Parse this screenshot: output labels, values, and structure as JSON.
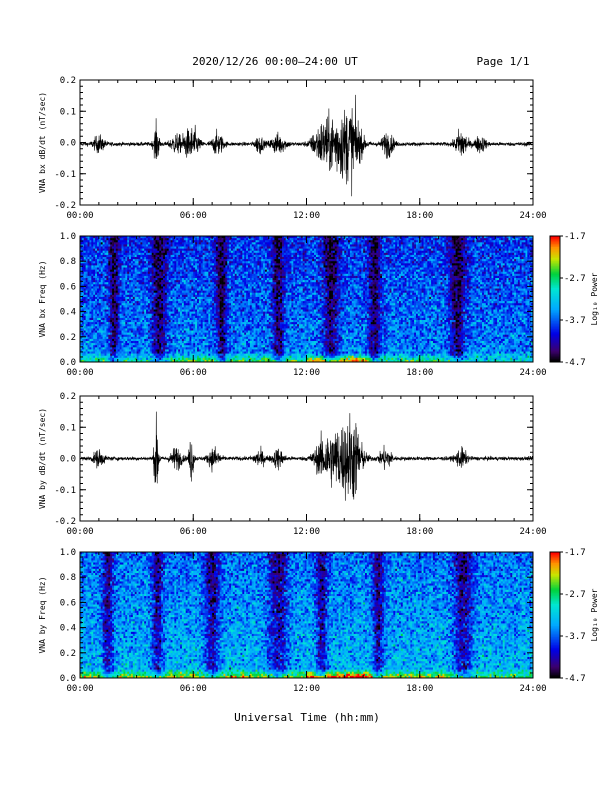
{
  "header": {
    "title": "2020/12/26  00:00–24:00 UT",
    "page": "Page 1/1"
  },
  "xlabel": "Universal Time (hh:mm)",
  "chart_data": [
    {
      "type": "line",
      "name": "bx-waveform",
      "ylabel": "VNA bx dB/dt (nT/sec)",
      "xlim": [
        0,
        24
      ],
      "ylim": [
        -0.2,
        0.2
      ],
      "x_ticks": [
        "00:00",
        "06:00",
        "12:00",
        "18:00",
        "24:00"
      ],
      "y_ticks": [
        "0.2",
        "0.1",
        "0.0",
        "-0.1",
        "-0.2"
      ],
      "baseline": -0.005,
      "noise": 0.006,
      "bursts": [
        {
          "t": 1.0,
          "amp": 0.025,
          "w": 0.3
        },
        {
          "t": 4.05,
          "amp": 0.06,
          "w": 0.15
        },
        {
          "t": 5.1,
          "amp": 0.03,
          "w": 0.3
        },
        {
          "t": 5.6,
          "amp": 0.03,
          "w": 0.2
        },
        {
          "t": 6.0,
          "amp": 0.05,
          "w": 0.3
        },
        {
          "t": 7.3,
          "amp": 0.035,
          "w": 0.3
        },
        {
          "t": 9.5,
          "amp": 0.03,
          "w": 0.2
        },
        {
          "t": 10.5,
          "amp": 0.03,
          "w": 0.4
        },
        {
          "t": 12.8,
          "amp": 0.05,
          "w": 0.5
        },
        {
          "t": 13.8,
          "amp": 0.1,
          "w": 0.8
        },
        {
          "t": 14.5,
          "amp": 0.07,
          "w": 0.4
        },
        {
          "t": 16.3,
          "amp": 0.04,
          "w": 0.3
        },
        {
          "t": 20.2,
          "amp": 0.05,
          "w": 0.3
        },
        {
          "t": 21.2,
          "amp": 0.025,
          "w": 0.3
        }
      ]
    },
    {
      "type": "heatmap",
      "name": "bx-spectrogram",
      "ylabel": "VNA bx Freq (Hz)",
      "xlim": [
        0,
        24
      ],
      "ylim": [
        0,
        1.0
      ],
      "x_ticks": [
        "00:00",
        "06:00",
        "12:00",
        "18:00",
        "24:00"
      ],
      "y_ticks": [
        "1.0",
        "0.8",
        "0.6",
        "0.4",
        "0.2",
        "0.0"
      ],
      "colorbar": {
        "label": "Log₁₀ Power",
        "range": [
          -4.7,
          -1.7
        ],
        "ticks": [
          "-1.7",
          "-2.7",
          "-3.7",
          "-4.7"
        ]
      },
      "quiet_bands": [
        [
          1.8,
          0.25
        ],
        [
          4.2,
          0.4
        ],
        [
          7.5,
          0.3
        ],
        [
          10.5,
          0.3
        ],
        [
          13.3,
          0.4
        ],
        [
          15.6,
          0.3
        ],
        [
          20.0,
          0.4
        ]
      ],
      "base_level": -3.55,
      "low_freq_boost": [
        [
          0.0,
          4.0,
          0.6
        ],
        [
          4.0,
          12.0,
          0.9
        ],
        [
          12.0,
          15.5,
          1.6
        ],
        [
          15.5,
          20.5,
          0.8
        ],
        [
          20.5,
          24.0,
          0.3
        ]
      ]
    },
    {
      "type": "line",
      "name": "by-waveform",
      "ylabel": "VNA by dB/dt (nT/sec)",
      "xlim": [
        0,
        24
      ],
      "ylim": [
        -0.2,
        0.2
      ],
      "x_ticks": [
        "00:00",
        "06:00",
        "12:00",
        "18:00",
        "24:00"
      ],
      "y_ticks": [
        "0.2",
        "0.1",
        "0.0",
        "-0.1",
        "-0.2"
      ],
      "baseline": 0.0,
      "noise": 0.006,
      "bursts": [
        {
          "t": 1.0,
          "amp": 0.025,
          "w": 0.3
        },
        {
          "t": 4.05,
          "amp": 0.12,
          "w": 0.12
        },
        {
          "t": 5.1,
          "amp": 0.035,
          "w": 0.3
        },
        {
          "t": 5.9,
          "amp": 0.08,
          "w": 0.12
        },
        {
          "t": 7.1,
          "amp": 0.035,
          "w": 0.3
        },
        {
          "t": 9.5,
          "amp": 0.025,
          "w": 0.3
        },
        {
          "t": 10.5,
          "amp": 0.03,
          "w": 0.3
        },
        {
          "t": 12.9,
          "amp": 0.05,
          "w": 0.5
        },
        {
          "t": 13.9,
          "amp": 0.1,
          "w": 0.8
        },
        {
          "t": 14.5,
          "amp": 0.08,
          "w": 0.4
        },
        {
          "t": 16.2,
          "amp": 0.035,
          "w": 0.3
        },
        {
          "t": 20.2,
          "amp": 0.03,
          "w": 0.3
        }
      ]
    },
    {
      "type": "heatmap",
      "name": "by-spectrogram",
      "ylabel": "VNA by Freq (Hz)",
      "xlim": [
        0,
        24
      ],
      "ylim": [
        0,
        1.0
      ],
      "x_ticks": [
        "00:00",
        "06:00",
        "12:00",
        "18:00",
        "24:00"
      ],
      "y_ticks": [
        "1.0",
        "0.8",
        "0.6",
        "0.4",
        "0.2",
        "0.0"
      ],
      "colorbar": {
        "label": "Log₁₀ Power",
        "range": [
          -4.7,
          -1.7
        ],
        "ticks": [
          "-1.7",
          "-2.7",
          "-3.7",
          "-4.7"
        ]
      },
      "quiet_bands": [
        [
          1.5,
          0.3
        ],
        [
          4.1,
          0.3
        ],
        [
          7.0,
          0.4
        ],
        [
          10.5,
          0.5
        ],
        [
          12.8,
          0.3
        ],
        [
          15.8,
          0.3
        ],
        [
          20.3,
          0.5
        ]
      ],
      "base_level": -3.3,
      "low_freq_boost": [
        [
          0.0,
          4.0,
          0.8
        ],
        [
          4.0,
          12.0,
          1.0
        ],
        [
          12.0,
          15.5,
          1.7
        ],
        [
          15.5,
          20.5,
          0.9
        ],
        [
          20.5,
          24.0,
          0.5
        ]
      ]
    }
  ]
}
